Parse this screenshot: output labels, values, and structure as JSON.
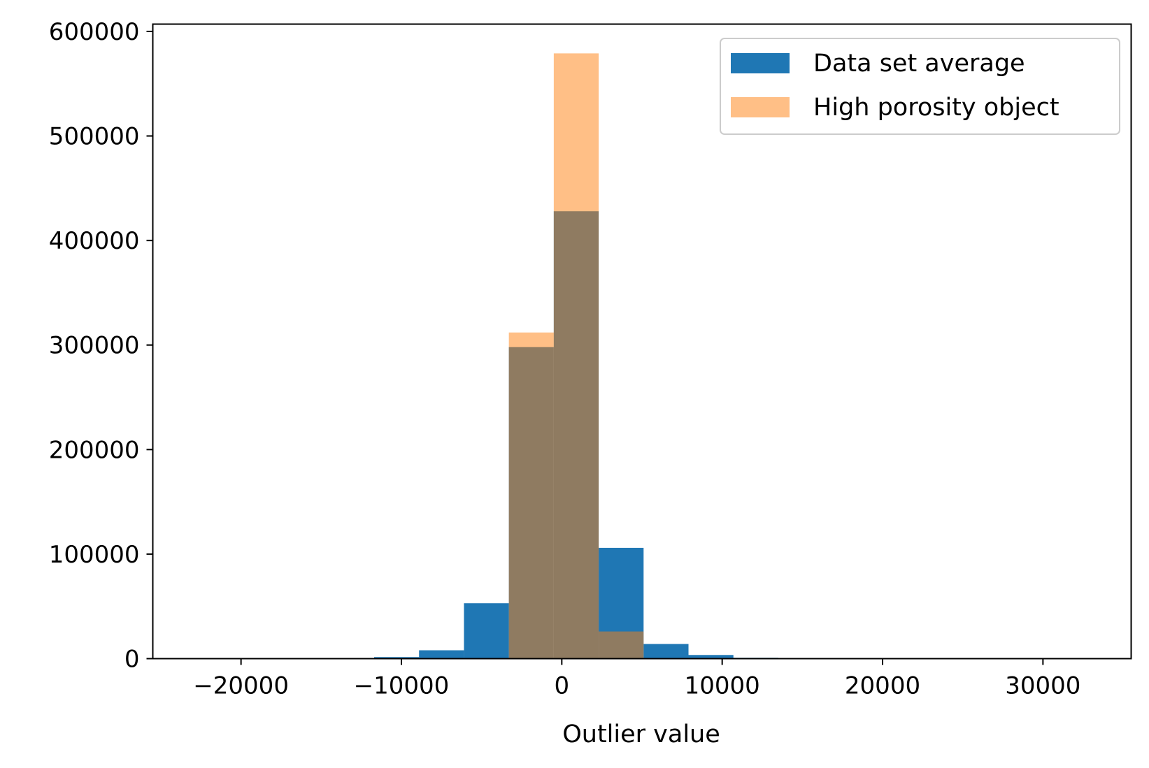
{
  "chart_data": {
    "type": "bar",
    "title": "",
    "xlabel": "Outlier value",
    "ylabel": "",
    "xlim": [
      -25500,
      35500
    ],
    "ylim": [
      0,
      607000
    ],
    "x_ticks": [
      -20000,
      -10000,
      0,
      10000,
      20000,
      30000
    ],
    "x_tick_labels": [
      "−20000",
      "−10000",
      "0",
      "10000",
      "20000",
      "30000"
    ],
    "y_ticks": [
      0,
      100000,
      200000,
      300000,
      400000,
      500000,
      600000
    ],
    "y_tick_labels": [
      "0",
      "100000",
      "200000",
      "300000",
      "400000",
      "500000",
      "600000"
    ],
    "grid": false,
    "legend_position": "top-right",
    "series": [
      {
        "name": "Data set average",
        "color": "#1f77b4",
        "opacity": 1.0,
        "bins": [
          {
            "x0": -11700,
            "x1": -8900,
            "count": 1500
          },
          {
            "x0": -8900,
            "x1": -6100,
            "count": 8000
          },
          {
            "x0": -6100,
            "x1": -3300,
            "count": 53000
          },
          {
            "x0": -3300,
            "x1": -500,
            "count": 298000
          },
          {
            "x0": -500,
            "x1": 2300,
            "count": 428000
          },
          {
            "x0": 2300,
            "x1": 5100,
            "count": 106000
          },
          {
            "x0": 5100,
            "x1": 7900,
            "count": 14000
          },
          {
            "x0": 7900,
            "x1": 10700,
            "count": 3500
          },
          {
            "x0": 10700,
            "x1": 13500,
            "count": 800
          }
        ]
      },
      {
        "name": "High porosity object",
        "color": "#ff7f0e",
        "opacity": 0.5,
        "bins": [
          {
            "x0": -3300,
            "x1": -500,
            "count": 312000
          },
          {
            "x0": -500,
            "x1": 2300,
            "count": 579000
          },
          {
            "x0": 2300,
            "x1": 5100,
            "count": 26000
          }
        ]
      }
    ]
  }
}
